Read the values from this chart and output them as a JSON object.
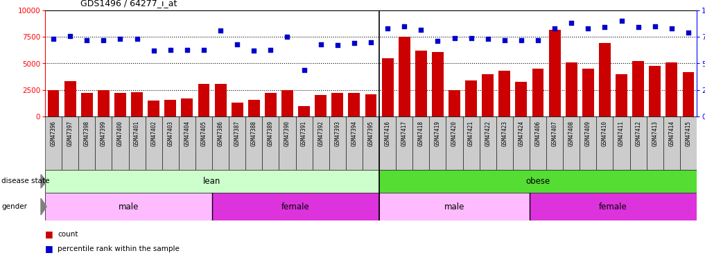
{
  "title": "GDS1496 / 64277_i_at",
  "samples": [
    "GSM47396",
    "GSM47397",
    "GSM47398",
    "GSM47399",
    "GSM47400",
    "GSM47401",
    "GSM47402",
    "GSM47403",
    "GSM47404",
    "GSM47405",
    "GSM47386",
    "GSM47387",
    "GSM47388",
    "GSM47389",
    "GSM47390",
    "GSM47391",
    "GSM47392",
    "GSM47393",
    "GSM47394",
    "GSM47395",
    "GSM47416",
    "GSM47417",
    "GSM47418",
    "GSM47419",
    "GSM47420",
    "GSM47421",
    "GSM47422",
    "GSM47423",
    "GSM47424",
    "GSM47406",
    "GSM47407",
    "GSM47408",
    "GSM47409",
    "GSM47410",
    "GSM47411",
    "GSM47412",
    "GSM47413",
    "GSM47414",
    "GSM47415"
  ],
  "counts": [
    2500,
    3350,
    2200,
    2500,
    2200,
    2300,
    1500,
    1600,
    1700,
    3100,
    3100,
    1300,
    1600,
    2250,
    2500,
    1000,
    2000,
    2250,
    2200,
    2100,
    5500,
    7500,
    6200,
    6100,
    2500,
    3400,
    4000,
    4300,
    3250,
    4500,
    8200,
    5100,
    4500,
    6900,
    4000,
    5200,
    4800,
    5100,
    4200
  ],
  "percentiles": [
    73,
    76,
    72,
    72,
    73,
    73,
    62,
    63,
    63,
    63,
    81,
    68,
    62,
    63,
    75,
    44,
    68,
    67,
    69,
    70,
    83,
    85,
    82,
    71,
    74,
    74,
    73,
    72,
    72,
    72,
    83,
    88,
    83,
    84,
    90,
    84,
    85,
    83,
    79
  ],
  "bar_color": "#cc0000",
  "dot_color": "#0000cc",
  "lean_color": "#ccffcc",
  "obese_color": "#55dd33",
  "male_color": "#ffbbff",
  "female_color": "#dd33dd",
  "background_color": "#ffffff",
  "tick_bg_color": "#cccccc",
  "yticks_left": [
    0,
    2500,
    5000,
    7500,
    10000
  ],
  "yticks_right": [
    0,
    25,
    50,
    75,
    100
  ],
  "ylim_left": [
    0,
    10000
  ],
  "ylim_right": [
    0,
    100
  ],
  "grid_values": [
    2500,
    5000,
    7500
  ],
  "lean_range": [
    0,
    20
  ],
  "obese_range": [
    20,
    39
  ],
  "lean_male_range": [
    0,
    10
  ],
  "lean_female_range": [
    10,
    20
  ],
  "obese_male_range": [
    20,
    29
  ],
  "obese_female_range": [
    29,
    39
  ]
}
